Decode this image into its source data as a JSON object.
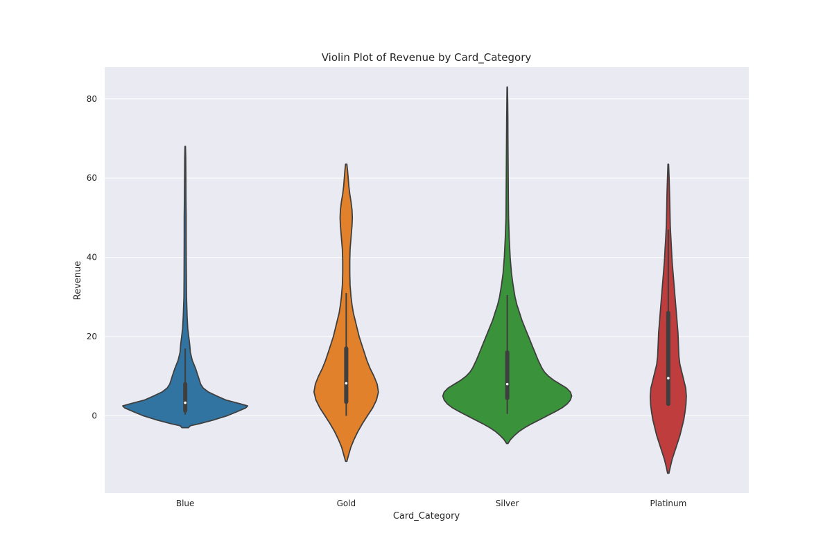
{
  "chart_data": {
    "type": "violin",
    "title": "Violin Plot of Revenue by Card_Category",
    "xlabel": "Card_Category",
    "ylabel": "Revenue",
    "ylim": [
      -19.5,
      88
    ],
    "yticks": [
      0,
      20,
      40,
      60,
      80
    ],
    "grid": true,
    "background": "#eaeaf2",
    "categories": [
      "Blue",
      "Gold",
      "Silver",
      "Platinum"
    ],
    "series": [
      {
        "category": "Blue",
        "color": "#3274a1",
        "data_min": 0.3,
        "data_max": 68,
        "q1": 1.3,
        "median": 3.3,
        "q3": 8,
        "whisker_low": 0.3,
        "whisker_high": 17,
        "density": [
          [
            -3,
            0.05
          ],
          [
            -2.5,
            0.08
          ],
          [
            -2,
            0.22
          ],
          [
            -1,
            0.45
          ],
          [
            0,
            0.65
          ],
          [
            1,
            0.8
          ],
          [
            2,
            0.94
          ],
          [
            2.5,
            0.97
          ],
          [
            3,
            0.86
          ],
          [
            4,
            0.63
          ],
          [
            5,
            0.49
          ],
          [
            6,
            0.36
          ],
          [
            7,
            0.28
          ],
          [
            8,
            0.24
          ],
          [
            9,
            0.22
          ],
          [
            10,
            0.2
          ],
          [
            12,
            0.16
          ],
          [
            14,
            0.11
          ],
          [
            16,
            0.08
          ],
          [
            18,
            0.07
          ],
          [
            20,
            0.055
          ],
          [
            22,
            0.04
          ],
          [
            25,
            0.03
          ],
          [
            30,
            0.02
          ],
          [
            35,
            0.018
          ],
          [
            40,
            0.016
          ],
          [
            45,
            0.015
          ],
          [
            50,
            0.015
          ],
          [
            55,
            0.012
          ],
          [
            60,
            0.01
          ],
          [
            65,
            0.008
          ],
          [
            68,
            0.004
          ]
        ]
      },
      {
        "category": "Gold",
        "color": "#e1812c",
        "data_min": 0,
        "data_max": 63.5,
        "q1": 3.5,
        "median": 8.2,
        "q3": 17,
        "whisker_low": 0,
        "whisker_high": 31,
        "density": [
          [
            -11.5,
            0.01
          ],
          [
            -10,
            0.035
          ],
          [
            -8,
            0.07
          ],
          [
            -6,
            0.12
          ],
          [
            -4,
            0.18
          ],
          [
            -2,
            0.25
          ],
          [
            0,
            0.33
          ],
          [
            2,
            0.41
          ],
          [
            4,
            0.47
          ],
          [
            6,
            0.5
          ],
          [
            8,
            0.48
          ],
          [
            10,
            0.43
          ],
          [
            12,
            0.37
          ],
          [
            14,
            0.32
          ],
          [
            16,
            0.28
          ],
          [
            18,
            0.24
          ],
          [
            20,
            0.2
          ],
          [
            22,
            0.17
          ],
          [
            24,
            0.14
          ],
          [
            26,
            0.11
          ],
          [
            28,
            0.09
          ],
          [
            30,
            0.075
          ],
          [
            33,
            0.06
          ],
          [
            36,
            0.055
          ],
          [
            39,
            0.055
          ],
          [
            42,
            0.06
          ],
          [
            45,
            0.075
          ],
          [
            48,
            0.09
          ],
          [
            50,
            0.095
          ],
          [
            52,
            0.09
          ],
          [
            54,
            0.075
          ],
          [
            56,
            0.055
          ],
          [
            58,
            0.04
          ],
          [
            60,
            0.03
          ],
          [
            62,
            0.02
          ],
          [
            63.5,
            0.01
          ]
        ]
      },
      {
        "category": "Silver",
        "color": "#3a923a",
        "data_min": 0.5,
        "data_max": 83,
        "q1": 4.5,
        "median": 8,
        "q3": 16,
        "whisker_low": 0.5,
        "whisker_high": 30.5,
        "density": [
          [
            -7,
            0.01
          ],
          [
            -6,
            0.05
          ],
          [
            -5,
            0.11
          ],
          [
            -4,
            0.18
          ],
          [
            -3,
            0.27
          ],
          [
            -2,
            0.38
          ],
          [
            -1,
            0.5
          ],
          [
            0,
            0.62
          ],
          [
            1,
            0.74
          ],
          [
            2,
            0.85
          ],
          [
            3,
            0.93
          ],
          [
            4,
            0.98
          ],
          [
            5,
            1.0
          ],
          [
            6,
            0.98
          ],
          [
            7,
            0.92
          ],
          [
            8,
            0.82
          ],
          [
            9,
            0.72
          ],
          [
            10,
            0.64
          ],
          [
            11,
            0.58
          ],
          [
            12,
            0.54
          ],
          [
            14,
            0.48
          ],
          [
            16,
            0.43
          ],
          [
            18,
            0.38
          ],
          [
            20,
            0.33
          ],
          [
            22,
            0.28
          ],
          [
            24,
            0.23
          ],
          [
            26,
            0.19
          ],
          [
            28,
            0.15
          ],
          [
            30,
            0.12
          ],
          [
            33,
            0.09
          ],
          [
            36,
            0.065
          ],
          [
            40,
            0.045
          ],
          [
            45,
            0.03
          ],
          [
            50,
            0.02
          ],
          [
            55,
            0.017
          ],
          [
            60,
            0.015
          ],
          [
            65,
            0.013
          ],
          [
            70,
            0.011
          ],
          [
            75,
            0.009
          ],
          [
            80,
            0.006
          ],
          [
            83,
            0.003
          ]
        ]
      },
      {
        "category": "Platinum",
        "color": "#c03d3e",
        "data_min": 3,
        "data_max": 47,
        "q1": 3,
        "median": 9.5,
        "q3": 26,
        "whisker_low": 3,
        "whisker_high": 47,
        "density": [
          [
            -14.5,
            0.01
          ],
          [
            -13,
            0.03
          ],
          [
            -11,
            0.06
          ],
          [
            -9,
            0.1
          ],
          [
            -7,
            0.14
          ],
          [
            -5,
            0.18
          ],
          [
            -3,
            0.21
          ],
          [
            -1,
            0.24
          ],
          [
            1,
            0.26
          ],
          [
            3,
            0.275
          ],
          [
            5,
            0.28
          ],
          [
            7,
            0.27
          ],
          [
            9,
            0.24
          ],
          [
            11,
            0.21
          ],
          [
            13,
            0.18
          ],
          [
            15,
            0.165
          ],
          [
            17,
            0.16
          ],
          [
            19,
            0.155
          ],
          [
            21,
            0.15
          ],
          [
            23,
            0.14
          ],
          [
            25,
            0.13
          ],
          [
            27,
            0.12
          ],
          [
            30,
            0.105
          ],
          [
            33,
            0.09
          ],
          [
            36,
            0.075
          ],
          [
            39,
            0.06
          ],
          [
            42,
            0.05
          ],
          [
            45,
            0.04
          ],
          [
            48,
            0.03
          ],
          [
            52,
            0.025
          ],
          [
            56,
            0.02
          ],
          [
            60,
            0.013
          ],
          [
            63.5,
            0.005
          ]
        ]
      }
    ]
  }
}
